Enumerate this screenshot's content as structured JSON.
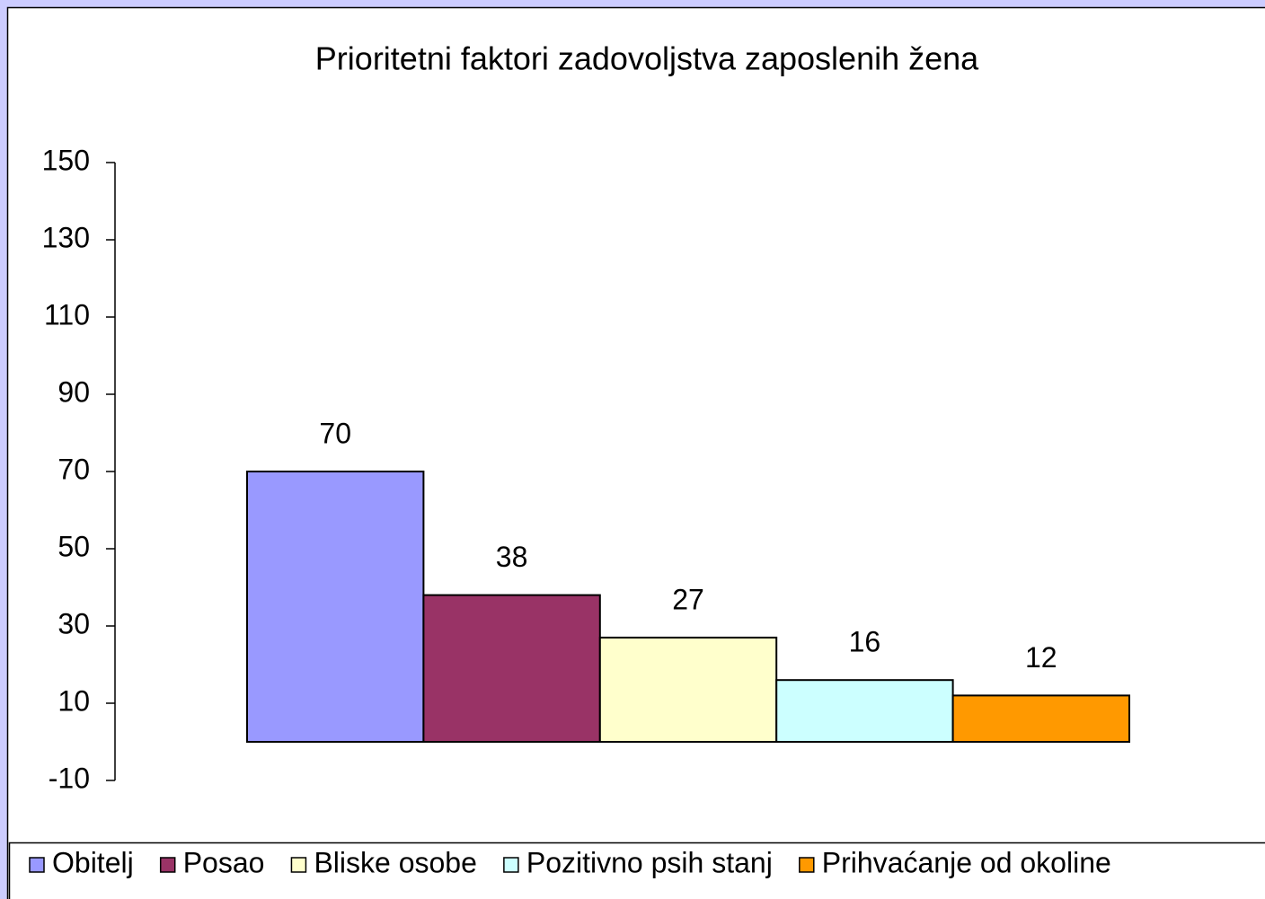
{
  "chart_data": {
    "type": "bar",
    "title": "Prioritetni faktori zadovoljstva zaposlenih žena",
    "series": [
      {
        "name": "Obitelj",
        "color": "#9999ff",
        "values": [
          70
        ]
      },
      {
        "name": "Posao",
        "color": "#993366",
        "values": [
          38
        ]
      },
      {
        "name": "Bliske osobe",
        "color": "#ffffcc",
        "values": [
          27
        ]
      },
      {
        "name": "Pozitivno psih stanj",
        "color": "#ccffff",
        "values": [
          16
        ]
      },
      {
        "name": "Prihvaćanje od okoline",
        "color": "#ff9900",
        "values": [
          12
        ]
      }
    ],
    "ylim": [
      -10,
      150
    ],
    "yticks": [
      -10,
      10,
      30,
      50,
      70,
      90,
      110,
      130,
      150
    ],
    "grid": false,
    "legend": "bottom"
  }
}
